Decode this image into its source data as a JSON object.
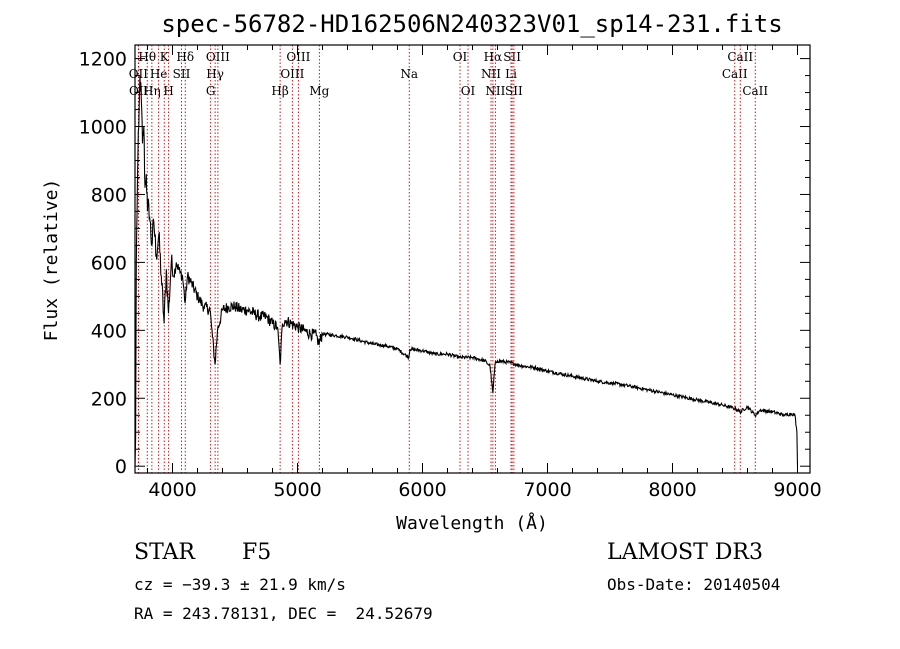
{
  "chart_data": {
    "type": "line",
    "title": "spec-56782-HD162506N240323V01_sp14-231.fits",
    "xlabel": "Wavelength (Å)",
    "ylabel": "Flux (relative)",
    "xlim": [
      3700,
      9100
    ],
    "ylim": [
      -20,
      1240
    ],
    "xticks": [
      4000,
      5000,
      6000,
      7000,
      8000,
      9000
    ],
    "yticks": [
      0,
      200,
      400,
      600,
      800,
      1000,
      1200
    ],
    "series": [
      {
        "name": "flux",
        "x": [
          3700,
          3705,
          3710,
          3720,
          3730,
          3740,
          3750,
          3760,
          3770,
          3780,
          3790,
          3800,
          3810,
          3820,
          3835,
          3850,
          3870,
          3890,
          3910,
          3933,
          3950,
          3968,
          3990,
          4010,
          4030,
          4060,
          4080,
          4101,
          4120,
          4150,
          4200,
          4250,
          4300,
          4320,
          4340,
          4360,
          4400,
          4450,
          4500,
          4550,
          4600,
          4650,
          4700,
          4750,
          4800,
          4840,
          4861,
          4880,
          4900,
          4950,
          5000,
          5050,
          5100,
          5150,
          5170,
          5200,
          5300,
          5400,
          5500,
          5600,
          5700,
          5800,
          5890,
          5900,
          6000,
          6100,
          6200,
          6300,
          6400,
          6500,
          6540,
          6563,
          6580,
          6600,
          6700,
          6800,
          6900,
          7000,
          7200,
          7400,
          7600,
          7800,
          8000,
          8200,
          8400,
          8498,
          8542,
          8600,
          8662,
          8700,
          8800,
          8900,
          8950,
          8980,
          8995,
          9000
        ],
        "y": [
          0,
          80,
          600,
          850,
          1000,
          1150,
          1080,
          950,
          1000,
          820,
          860,
          750,
          770,
          720,
          650,
          720,
          620,
          680,
          560,
          420,
          580,
          450,
          600,
          560,
          600,
          570,
          560,
          480,
          560,
          540,
          500,
          470,
          460,
          380,
          300,
          400,
          460,
          470,
          470,
          460,
          460,
          450,
          440,
          440,
          420,
          410,
          300,
          420,
          430,
          420,
          410,
          400,
          390,
          385,
          360,
          390,
          385,
          380,
          370,
          360,
          355,
          345,
          320,
          345,
          340,
          330,
          330,
          320,
          320,
          310,
          295,
          215,
          300,
          310,
          305,
          295,
          290,
          280,
          265,
          250,
          240,
          225,
          210,
          195,
          180,
          170,
          160,
          175,
          150,
          165,
          160,
          150,
          155,
          150,
          100,
          0
        ]
      }
    ],
    "lines": [
      {
        "label": "Hθ",
        "wave": 3798,
        "row": 1
      },
      {
        "label": "OII",
        "wave": 3727,
        "row": 2
      },
      {
        "label": "OII",
        "wave": 3729,
        "row": 3
      },
      {
        "label": "Hη",
        "wave": 3835,
        "row": 3
      },
      {
        "label": "He",
        "wave": 3889,
        "row": 2
      },
      {
        "label": "K",
        "wave": 3934,
        "row": 1
      },
      {
        "label": "H",
        "wave": 3969,
        "row": 3
      },
      {
        "label": "SII",
        "wave": 4072,
        "row": 2
      },
      {
        "label": "Hδ",
        "wave": 4102,
        "row": 1
      },
      {
        "label": "OIII",
        "wave": 4363,
        "row": 1
      },
      {
        "label": "Hγ",
        "wave": 4341,
        "row": 2
      },
      {
        "label": "G",
        "wave": 4305,
        "row": 3
      },
      {
        "label": "Hβ",
        "wave": 4861,
        "row": 3
      },
      {
        "label": "OIII",
        "wave": 4959,
        "row": 2
      },
      {
        "label": "OIII",
        "wave": 5007,
        "row": 1
      },
      {
        "label": "Mg",
        "wave": 5175,
        "row": 3
      },
      {
        "label": "Na",
        "wave": 5894,
        "row": 2
      },
      {
        "label": "OI",
        "wave": 6300,
        "row": 1
      },
      {
        "label": "OI",
        "wave": 6364,
        "row": 3
      },
      {
        "label": "NII",
        "wave": 6548,
        "row": 2
      },
      {
        "label": "Hα",
        "wave": 6563,
        "row": 1
      },
      {
        "label": "NII",
        "wave": 6583,
        "row": 3
      },
      {
        "label": "SII",
        "wave": 6717,
        "row": 1
      },
      {
        "label": "Li",
        "wave": 6708,
        "row": 2
      },
      {
        "label": "SII",
        "wave": 6731,
        "row": 3
      },
      {
        "label": "CaII",
        "wave": 8498,
        "row": 2
      },
      {
        "label": "CaII",
        "wave": 8542,
        "row": 1
      },
      {
        "label": "CaII",
        "wave": 8662,
        "row": 3
      }
    ]
  },
  "info": {
    "object_class": "STAR",
    "subclass": "F5",
    "survey": "LAMOST DR3",
    "cz": "cz = −39.3 ± 21.9 km/s",
    "obs_date": "Obs-Date: 20140504",
    "coords": "RA = 243.78131, DEC =  24.52679"
  }
}
